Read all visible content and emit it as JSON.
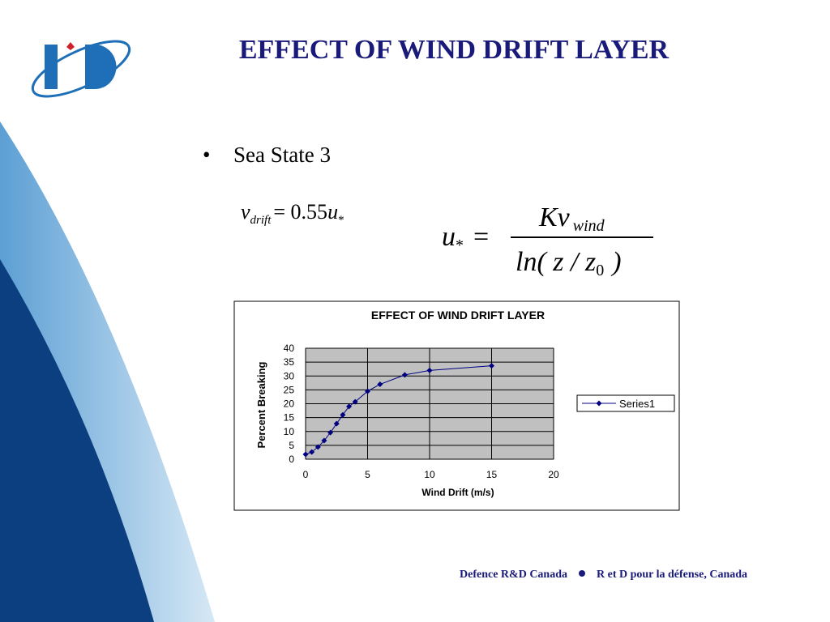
{
  "slide": {
    "title": "EFFECT OF WIND DRIFT LAYER",
    "bullet": "Sea State 3",
    "equation_1": {
      "v": "v",
      "sub": "drift",
      "rest": "= 0.55",
      "u": "u",
      "star": "*"
    },
    "equation_2": {
      "u": "u",
      "star": "*",
      "eq": "=",
      "num": "Kv",
      "num_sub": "wind",
      "den": "ln( z / z",
      "den_sub": "0",
      "den_end": ")"
    },
    "footer_left": "Defence R&D Canada",
    "footer_right": "R et D pour la défense, Canada"
  },
  "chart_data": {
    "type": "line",
    "title": "EFFECT OF WIND DRIFT LAYER",
    "x_label": "Wind Drift (m/s)",
    "y_label": "Percent Breaking",
    "x": [
      0,
      0.5,
      1,
      1.5,
      2,
      2.5,
      3,
      3.5,
      4,
      5,
      6,
      8,
      10,
      15
    ],
    "series": [
      {
        "name": "Series1",
        "color": "#000080",
        "values": [
          1.75,
          2.6,
          4.4,
          6.7,
          9.6,
          12.8,
          16,
          19,
          20.7,
          24.5,
          27,
          30.4,
          32,
          33.7
        ]
      }
    ],
    "xlim": [
      0,
      20
    ],
    "xticks": [
      0,
      5,
      10,
      15,
      20
    ],
    "ylim": [
      0,
      40
    ],
    "yticks": [
      0,
      5,
      10,
      15,
      20,
      25,
      30,
      35,
      40
    ],
    "grid": true,
    "legend": "right",
    "plot_color": "#c0c0c0"
  }
}
